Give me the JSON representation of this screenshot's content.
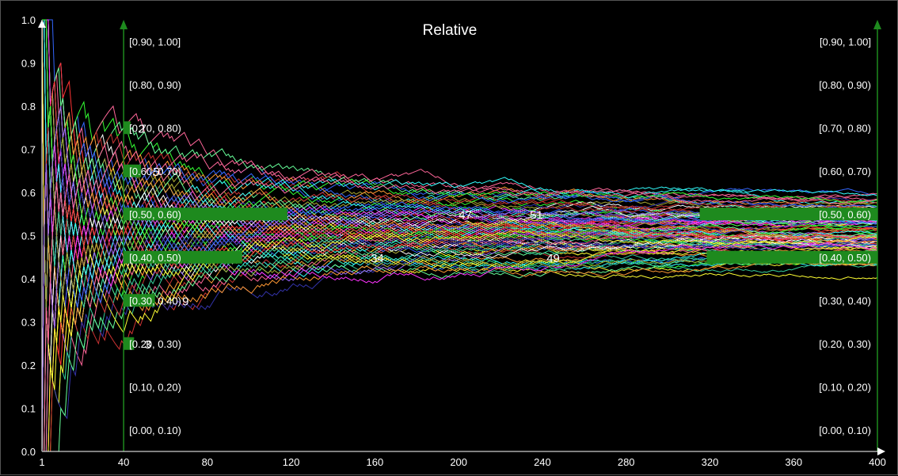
{
  "chart_data": {
    "type": "line",
    "title": "Relative",
    "xlim": [
      1,
      400
    ],
    "ylim": [
      0,
      1
    ],
    "x_ticks": [
      "1",
      "40",
      "80",
      "120",
      "160",
      "200",
      "240",
      "280",
      "320",
      "360",
      "400"
    ],
    "x_tick_values": [
      1,
      40,
      80,
      120,
      160,
      200,
      240,
      280,
      320,
      360,
      400
    ],
    "y_ticks": [
      "0.0",
      "0.1",
      "0.2",
      "0.3",
      "0.4",
      "0.5",
      "0.6",
      "0.7",
      "0.8",
      "0.9",
      "1.0"
    ],
    "y_tick_values": [
      0,
      0.1,
      0.2,
      0.3,
      0.4,
      0.5,
      0.6,
      0.7,
      0.8,
      0.9,
      1.0
    ],
    "bins": [
      "[0.00, 0.10)",
      "[0.10, 0.20)",
      "[0.20, 0.30)",
      "[0.30, 0.40)",
      "[0.40, 0.50)",
      "[0.50, 0.60)",
      "[0.60, 0.70)",
      "[0.70, 0.80)",
      "[0.80, 0.90)",
      "[0.90, 1.00]"
    ],
    "histograms": [
      {
        "x": 40,
        "counts": [
          0,
          0,
          3,
          9,
          34,
          47,
          5,
          2,
          0,
          0
        ]
      },
      {
        "x": 400,
        "counts": [
          0,
          0,
          0,
          0,
          49,
          51,
          0,
          0,
          0,
          0
        ]
      }
    ],
    "count_labels": [
      {
        "text": "2",
        "bin": 7,
        "x": 47
      },
      {
        "text": "5",
        "bin": 6,
        "x": 54
      },
      {
        "text": "9",
        "bin": 3,
        "x": 68
      },
      {
        "text": "3",
        "bin": 2,
        "x": 50
      },
      {
        "text": "34",
        "bin": 4,
        "x": 158
      },
      {
        "text": "47",
        "bin": 5,
        "x": 200
      },
      {
        "text": "51",
        "bin": 5,
        "x": 234
      },
      {
        "text": "49",
        "bin": 4,
        "x": 242
      }
    ],
    "series_count": 100,
    "colors": {
      "background": "#000000",
      "histogram": "#1e8a1e",
      "axis": "#ffffff",
      "series_palette": [
        "#ff3333",
        "#33ff33",
        "#3366ff",
        "#ffff33",
        "#ff33ff",
        "#33ffff",
        "#ff9933",
        "#aaaa33",
        "#9966ff",
        "#ff6699",
        "#66ff99",
        "#ffffff",
        "#3333aa",
        "#cc3333",
        "#33cc99"
      ]
    }
  }
}
